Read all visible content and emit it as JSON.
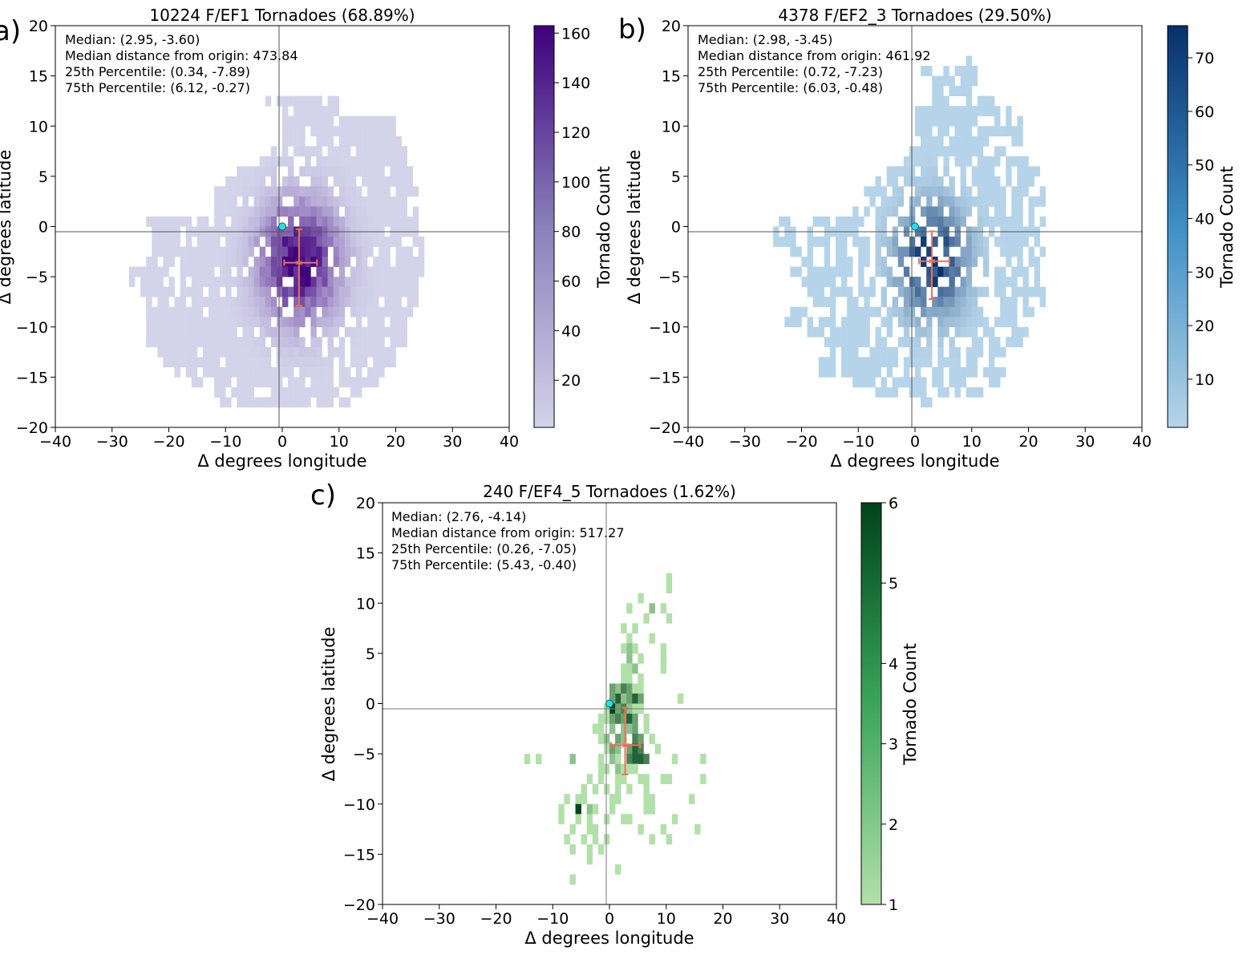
{
  "chart_data": [
    {
      "type": "heatmap",
      "panel_label": "a)",
      "title": "10224 F/EF1 Tornadoes (68.89%)",
      "xlabel": "Δ degrees longitude",
      "ylabel": "Δ degrees latitude",
      "xlim": [
        -40,
        40
      ],
      "ylim": [
        -20,
        20
      ],
      "xticks": [
        -40,
        -30,
        -20,
        -10,
        0,
        10,
        20,
        30,
        40
      ],
      "yticks": [
        -20,
        -15,
        -10,
        -5,
        0,
        5,
        10,
        15,
        20
      ],
      "xtick_labels": [
        "−40",
        "−30",
        "−20",
        "−10",
        "0",
        "10",
        "20",
        "30",
        "40"
      ],
      "ytick_labels": [
        "−20",
        "−15",
        "−10",
        "−5",
        "0",
        "5",
        "10",
        "15",
        "20"
      ],
      "colormap": "purples",
      "color_light": "#d3d3ea",
      "color_dark": "#3f007d",
      "colorbar": {
        "label": "Tornado Count",
        "range": [
          1,
          163
        ],
        "ticks": [
          20,
          40,
          60,
          80,
          100,
          120,
          140,
          160
        ],
        "tick_labels": [
          "20",
          "40",
          "60",
          "80",
          "100",
          "120",
          "140",
          "160"
        ]
      },
      "origin": [
        0,
        0
      ],
      "median": [
        2.95,
        -3.6
      ],
      "p25": [
        0.34,
        -7.89
      ],
      "p75": [
        6.12,
        -0.27
      ],
      "annotations": [
        "Median: (2.95, -3.60)",
        "Median distance from origin: 473.84",
        "25th Percentile: (0.34, -7.89)",
        "75th Percentile: (6.12, -0.27)"
      ],
      "distribution": {
        "center": [
          3.0,
          -3.5
        ],
        "spread": [
          4.5,
          3.8
        ],
        "peak": 160,
        "extent_rows": [
          [
            12,
            -3,
            10
          ],
          [
            11,
            -1,
            10
          ],
          [
            10,
            0,
            20
          ],
          [
            9,
            0,
            20
          ],
          [
            8,
            0,
            21
          ],
          [
            7,
            -2,
            22
          ],
          [
            6,
            -4,
            22
          ],
          [
            5,
            -8,
            23
          ],
          [
            4,
            -10,
            23
          ],
          [
            3,
            -12,
            24
          ],
          [
            2,
            -12,
            24
          ],
          [
            1,
            -12,
            24
          ],
          [
            0,
            -24,
            24
          ],
          [
            -1,
            -24,
            24
          ],
          [
            -2,
            -23,
            25
          ],
          [
            -3,
            -23,
            25
          ],
          [
            -4,
            -24,
            25
          ],
          [
            -5,
            -27,
            25
          ],
          [
            -6,
            -27,
            24
          ],
          [
            -7,
            -25,
            24
          ],
          [
            -8,
            -24,
            24
          ],
          [
            -9,
            -24,
            23
          ],
          [
            -10,
            -24,
            23
          ],
          [
            -11,
            -24,
            22
          ],
          [
            -12,
            -24,
            22
          ],
          [
            -13,
            -22,
            20
          ],
          [
            -14,
            -21,
            20
          ],
          [
            -15,
            -19,
            18
          ],
          [
            -16,
            -16,
            17
          ],
          [
            -17,
            -12,
            14
          ],
          [
            -18,
            -11,
            12
          ]
        ],
        "holes": 0.12
      }
    },
    {
      "type": "heatmap",
      "panel_label": "b)",
      "title": "4378 F/EF2_3 Tornadoes (29.50%)",
      "xlabel": "Δ degrees longitude",
      "ylabel": "Δ degrees latitude",
      "xlim": [
        -40,
        40
      ],
      "ylim": [
        -20,
        20
      ],
      "xticks": [
        -40,
        -30,
        -20,
        -10,
        0,
        10,
        20,
        30,
        40
      ],
      "yticks": [
        -20,
        -15,
        -10,
        -5,
        0,
        5,
        10,
        15,
        20
      ],
      "xtick_labels": [
        "−40",
        "−30",
        "−20",
        "−10",
        "0",
        "10",
        "20",
        "30",
        "40"
      ],
      "ytick_labels": [
        "−20",
        "−15",
        "−10",
        "−5",
        "0",
        "5",
        "10",
        "15",
        "20"
      ],
      "colormap": "blues",
      "color_light": "#b5d4e9",
      "color_dark": "#08306b",
      "colorbar": {
        "label": "Tornado Count",
        "range": [
          1,
          76
        ],
        "ticks": [
          10,
          20,
          30,
          40,
          50,
          60,
          70
        ],
        "tick_labels": [
          "10",
          "20",
          "30",
          "40",
          "50",
          "60",
          "70"
        ]
      },
      "origin": [
        0,
        0
      ],
      "median": [
        2.98,
        -3.45
      ],
      "p25": [
        0.72,
        -7.23
      ],
      "p75": [
        6.03,
        -0.48
      ],
      "annotations": [
        "Median: (2.98, -3.45)",
        "Median distance from origin: 461.92",
        "25th Percentile: (0.72, -7.23)",
        "75th Percentile: (6.03, -0.48)"
      ],
      "distribution": {
        "center": [
          3.0,
          -3.3
        ],
        "spread": [
          4.0,
          3.5
        ],
        "peak": 75,
        "extent_rows": [
          [
            16,
            9,
            11
          ],
          [
            15,
            1,
            11
          ],
          [
            14,
            1,
            11
          ],
          [
            13,
            1,
            11
          ],
          [
            12,
            1,
            14
          ],
          [
            11,
            0,
            17
          ],
          [
            10,
            0,
            19
          ],
          [
            9,
            0,
            19
          ],
          [
            8,
            1,
            19
          ],
          [
            7,
            -1,
            18
          ],
          [
            6,
            -2,
            20
          ],
          [
            5,
            -5,
            22
          ],
          [
            4,
            -7,
            22
          ],
          [
            3,
            -9,
            23
          ],
          [
            2,
            -9,
            23
          ],
          [
            1,
            -11,
            23
          ],
          [
            0,
            -24,
            23
          ],
          [
            -1,
            -25,
            23
          ],
          [
            -2,
            -25,
            22
          ],
          [
            -3,
            -22,
            23
          ],
          [
            -4,
            -22,
            22
          ],
          [
            -5,
            -22,
            22
          ],
          [
            -6,
            -20,
            22
          ],
          [
            -7,
            -19,
            23
          ],
          [
            -8,
            -18,
            23
          ],
          [
            -9,
            -23,
            21
          ],
          [
            -10,
            -23,
            20
          ],
          [
            -11,
            -19,
            20
          ],
          [
            -12,
            -18,
            19
          ],
          [
            -13,
            -17,
            17
          ],
          [
            -14,
            -17,
            16
          ],
          [
            -15,
            -17,
            16
          ],
          [
            -16,
            -11,
            15
          ],
          [
            -17,
            -7,
            12
          ],
          [
            -18,
            -4,
            3
          ]
        ],
        "holes": 0.3
      }
    },
    {
      "type": "heatmap",
      "panel_label": "c)",
      "title": "240 F/EF4_5 Tornadoes (1.62%)",
      "xlabel": "Δ degrees longitude",
      "ylabel": "Δ degrees latitude",
      "xlim": [
        -40,
        40
      ],
      "ylim": [
        -20,
        20
      ],
      "xticks": [
        -40,
        -30,
        -20,
        -10,
        0,
        10,
        20,
        30,
        40
      ],
      "yticks": [
        -20,
        -15,
        -10,
        -5,
        0,
        5,
        10,
        15,
        20
      ],
      "xtick_labels": [
        "−40",
        "−30",
        "−20",
        "−10",
        "0",
        "10",
        "20",
        "30",
        "40"
      ],
      "ytick_labels": [
        "−20",
        "−15",
        "−10",
        "−5",
        "0",
        "5",
        "10",
        "15",
        "20"
      ],
      "colormap": "greens",
      "color_light": "#b2e0a9",
      "color_dark": "#00441b",
      "colorbar": {
        "label": "Tornado Count",
        "range": [
          1,
          6
        ],
        "ticks": [
          1,
          2,
          3,
          4,
          5,
          6
        ],
        "tick_labels": [
          "1",
          "2",
          "3",
          "4",
          "5",
          "6"
        ]
      },
      "origin": [
        0,
        0
      ],
      "median": [
        2.76,
        -4.14
      ],
      "p25": [
        0.26,
        -7.05
      ],
      "p75": [
        5.43,
        -0.4
      ],
      "annotations": [
        "Median: (2.76, -4.14)",
        "Median distance from origin: 517.27",
        "25th Percentile: (0.26, -7.05)",
        "75th Percentile: (5.43, -0.40)"
      ],
      "cells": [
        [
          10,
          12,
          1
        ],
        [
          10,
          11,
          1
        ],
        [
          5,
          10,
          1
        ],
        [
          9,
          9,
          1
        ],
        [
          7,
          9,
          2
        ],
        [
          3,
          9,
          1
        ],
        [
          10,
          8,
          1
        ],
        [
          6,
          8,
          1
        ],
        [
          2,
          7,
          1
        ],
        [
          4,
          7,
          1
        ],
        [
          7,
          6,
          1
        ],
        [
          3,
          6,
          1
        ],
        [
          9,
          5,
          1
        ],
        [
          3,
          5,
          2
        ],
        [
          4,
          5,
          1
        ],
        [
          2,
          5,
          1
        ],
        [
          3,
          4,
          2
        ],
        [
          5,
          4,
          1
        ],
        [
          9,
          4,
          1
        ],
        [
          3,
          3,
          1
        ],
        [
          2,
          3,
          1
        ],
        [
          4,
          3,
          2
        ],
        [
          9,
          3,
          1
        ],
        [
          2,
          2,
          1
        ],
        [
          3,
          2,
          1
        ],
        [
          5,
          2,
          1
        ],
        [
          1,
          1,
          2
        ],
        [
          2,
          1,
          4
        ],
        [
          3,
          1,
          3
        ],
        [
          4,
          1,
          1
        ],
        [
          0,
          1,
          3
        ],
        [
          5,
          1,
          1
        ],
        [
          1,
          0,
          5
        ],
        [
          2,
          0,
          2
        ],
        [
          3,
          0,
          3
        ],
        [
          4,
          0,
          5
        ],
        [
          5,
          0,
          3
        ],
        [
          12,
          0,
          1
        ],
        [
          0,
          0,
          3
        ],
        [
          0,
          -1,
          6
        ],
        [
          1,
          -1,
          3
        ],
        [
          2,
          -1,
          4
        ],
        [
          3,
          -1,
          2
        ],
        [
          4,
          -1,
          1
        ],
        [
          5,
          -1,
          1
        ],
        [
          -1,
          -1,
          1
        ],
        [
          -2,
          -2,
          1
        ],
        [
          -1,
          -2,
          1
        ],
        [
          0,
          -2,
          3
        ],
        [
          1,
          -2,
          4
        ],
        [
          2,
          -2,
          3
        ],
        [
          3,
          -2,
          5
        ],
        [
          4,
          -2,
          3
        ],
        [
          6,
          -2,
          1
        ],
        [
          -3,
          -3,
          1
        ],
        [
          -2,
          -3,
          1
        ],
        [
          0,
          -3,
          2
        ],
        [
          2,
          -3,
          2
        ],
        [
          3,
          -3,
          2
        ],
        [
          4,
          -3,
          3
        ],
        [
          6,
          -3,
          1
        ],
        [
          -2,
          -4,
          1
        ],
        [
          -1,
          -4,
          2
        ],
        [
          1,
          -4,
          3
        ],
        [
          2,
          -4,
          2
        ],
        [
          4,
          -4,
          4
        ],
        [
          5,
          -4,
          3
        ],
        [
          7,
          -4,
          1
        ],
        [
          -1,
          -5,
          1
        ],
        [
          0,
          -5,
          3
        ],
        [
          1,
          -5,
          2
        ],
        [
          3,
          -5,
          3
        ],
        [
          4,
          -5,
          5
        ],
        [
          5,
          -5,
          4
        ],
        [
          8,
          -5,
          1
        ],
        [
          -15,
          -6,
          1
        ],
        [
          -13,
          -6,
          1
        ],
        [
          -7,
          -6,
          2
        ],
        [
          -2,
          -6,
          1
        ],
        [
          0,
          -6,
          2
        ],
        [
          1,
          -6,
          1
        ],
        [
          3,
          -6,
          4
        ],
        [
          4,
          -6,
          5
        ],
        [
          5,
          -6,
          5
        ],
        [
          6,
          -6,
          4
        ],
        [
          11,
          -6,
          1
        ],
        [
          16,
          -6,
          1
        ],
        [
          -2,
          -7,
          1
        ],
        [
          -1,
          -7,
          1
        ],
        [
          1,
          -7,
          2
        ],
        [
          2,
          -7,
          1
        ],
        [
          3,
          -7,
          1
        ],
        [
          4,
          -7,
          1
        ],
        [
          -4,
          -8,
          1
        ],
        [
          -2,
          -8,
          1
        ],
        [
          1,
          -8,
          1
        ],
        [
          2,
          -8,
          1
        ],
        [
          5,
          -8,
          1
        ],
        [
          6,
          -8,
          1
        ],
        [
          9,
          -8,
          1
        ],
        [
          10,
          -8,
          1
        ],
        [
          16,
          -8,
          1
        ],
        [
          -5,
          -9,
          1
        ],
        [
          -3,
          -9,
          1
        ],
        [
          -1,
          -9,
          1
        ],
        [
          1,
          -9,
          1
        ],
        [
          3,
          -9,
          1
        ],
        [
          6,
          -9,
          1
        ],
        [
          -8,
          -10,
          1
        ],
        [
          -6,
          -10,
          1
        ],
        [
          -5,
          -10,
          1
        ],
        [
          0,
          -10,
          1
        ],
        [
          1,
          -10,
          1
        ],
        [
          6,
          -10,
          1
        ],
        [
          7,
          -10,
          1
        ],
        [
          14,
          -10,
          1
        ],
        [
          -9,
          -11,
          1
        ],
        [
          -6,
          -11,
          6
        ],
        [
          -4,
          -11,
          2
        ],
        [
          -3,
          -11,
          1
        ],
        [
          0,
          -11,
          1
        ],
        [
          6,
          -11,
          1
        ],
        [
          7,
          -11,
          1
        ],
        [
          -9,
          -12,
          1
        ],
        [
          -6,
          -12,
          1
        ],
        [
          -4,
          -12,
          1
        ],
        [
          -1,
          -12,
          1
        ],
        [
          2,
          -12,
          1
        ],
        [
          3,
          -12,
          1
        ],
        [
          11,
          -12,
          1
        ],
        [
          -7,
          -13,
          1
        ],
        [
          -4,
          -13,
          1
        ],
        [
          -3,
          -13,
          1
        ],
        [
          5,
          -13,
          1
        ],
        [
          9,
          -13,
          1
        ],
        [
          15,
          -13,
          1
        ],
        [
          -8,
          -14,
          1
        ],
        [
          -5,
          -14,
          1
        ],
        [
          -3,
          -14,
          1
        ],
        [
          -1,
          -14,
          1
        ],
        [
          7,
          -14,
          1
        ],
        [
          10,
          -14,
          1
        ],
        [
          -7,
          -15,
          1
        ],
        [
          -4,
          -15,
          1
        ],
        [
          -2,
          -15,
          1
        ],
        [
          -4,
          -16,
          1
        ],
        [
          1,
          -17,
          1
        ],
        [
          -7,
          -18,
          1
        ]
      ]
    }
  ]
}
